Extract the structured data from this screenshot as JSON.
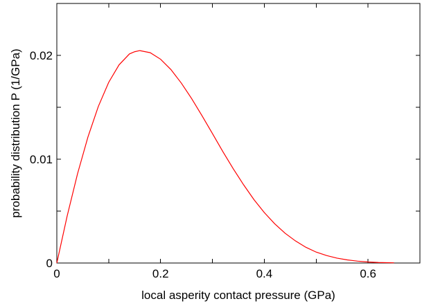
{
  "chart_data": {
    "type": "line",
    "title": "",
    "xlabel": "local asperity contact pressure (GPa)",
    "ylabel": "probability distribution P  (1/GPa)",
    "xlim": [
      0,
      0.7
    ],
    "ylim": [
      0,
      0.025
    ],
    "xticks": [
      0,
      0.2,
      0.4,
      0.6
    ],
    "xtick_labels": [
      "0",
      "0.2",
      "0.4",
      "0.6"
    ],
    "yticks": [
      0,
      0.01,
      0.02
    ],
    "ytick_labels": [
      "0",
      "0.01",
      "0.02"
    ],
    "grid": false,
    "legend": "none",
    "series": [
      {
        "color": "#ff0000",
        "x": [
          0,
          0.02,
          0.04,
          0.06,
          0.08,
          0.1,
          0.12,
          0.14,
          0.15,
          0.16,
          0.18,
          0.2,
          0.22,
          0.24,
          0.26,
          0.28,
          0.3,
          0.32,
          0.34,
          0.36,
          0.38,
          0.4,
          0.42,
          0.44,
          0.46,
          0.48,
          0.5,
          0.52,
          0.54,
          0.56,
          0.58,
          0.6,
          0.62,
          0.65
        ],
        "y": [
          0,
          0.00454,
          0.00861,
          0.01214,
          0.01508,
          0.0174,
          0.01909,
          0.02014,
          0.02035,
          0.02046,
          0.02026,
          0.01963,
          0.01863,
          0.01733,
          0.01583,
          0.01418,
          0.01247,
          0.01074,
          0.00909,
          0.00754,
          0.00611,
          0.00486,
          0.00378,
          0.00287,
          0.00213,
          0.00152,
          0.00105,
          0.00072,
          0.00047,
          0.0003,
          0.00018,
          0.0001,
          5e-05,
          2e-05
        ]
      }
    ]
  }
}
